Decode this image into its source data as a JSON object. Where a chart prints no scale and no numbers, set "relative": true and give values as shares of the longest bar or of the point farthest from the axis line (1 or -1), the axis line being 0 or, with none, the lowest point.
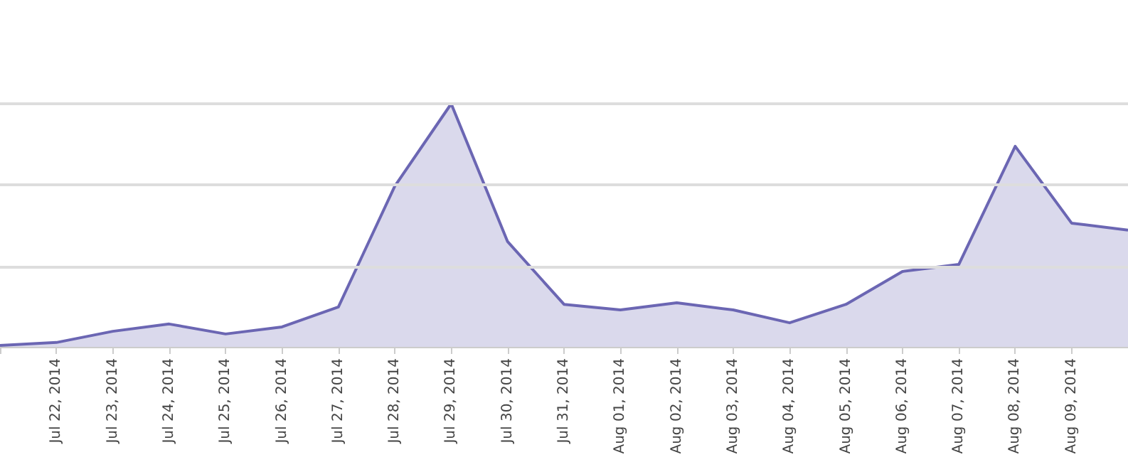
{
  "chart_data": {
    "type": "area",
    "relative": true,
    "marker": "none",
    "ref_lines": [
      {
        "axis": "y",
        "value": 0.333,
        "color": "#dddddd"
      },
      {
        "axis": "y",
        "value": 0.667,
        "color": "#dddddd"
      },
      {
        "axis": "y",
        "value": 1,
        "color": "#dddddd"
      }
    ],
    "categories": [
      null,
      "Jul 22, 2014",
      "Jul 23, 2014",
      "Jul 24, 2014",
      "Jul 25, 2014",
      "Jul 26, 2014",
      "Jul 27, 2014",
      "Jul 28, 2014",
      "Jul 29, 2014",
      "Jul 30, 2014",
      "Jul 31, 2014",
      "Aug 01, 2014",
      "Aug 02, 2014",
      "Aug 03, 2014",
      "Aug 04, 2014",
      "Aug 05, 2014",
      "Aug 06, 2014",
      "Aug 07, 2014",
      "Aug 08, 2014",
      "Aug 09, 2014",
      null
    ],
    "series": [
      {
        "color": "#6b66b3",
        "values": [
          0.006,
          0.018,
          0.064,
          0.094,
          0.053,
          0.082,
          0.164,
          0.661,
          1,
          0.433,
          0.175,
          0.152,
          0.181,
          0.152,
          0.099,
          0.175,
          0.31,
          0.339,
          0.825,
          0.509,
          0.48
        ]
      }
    ]
  }
}
